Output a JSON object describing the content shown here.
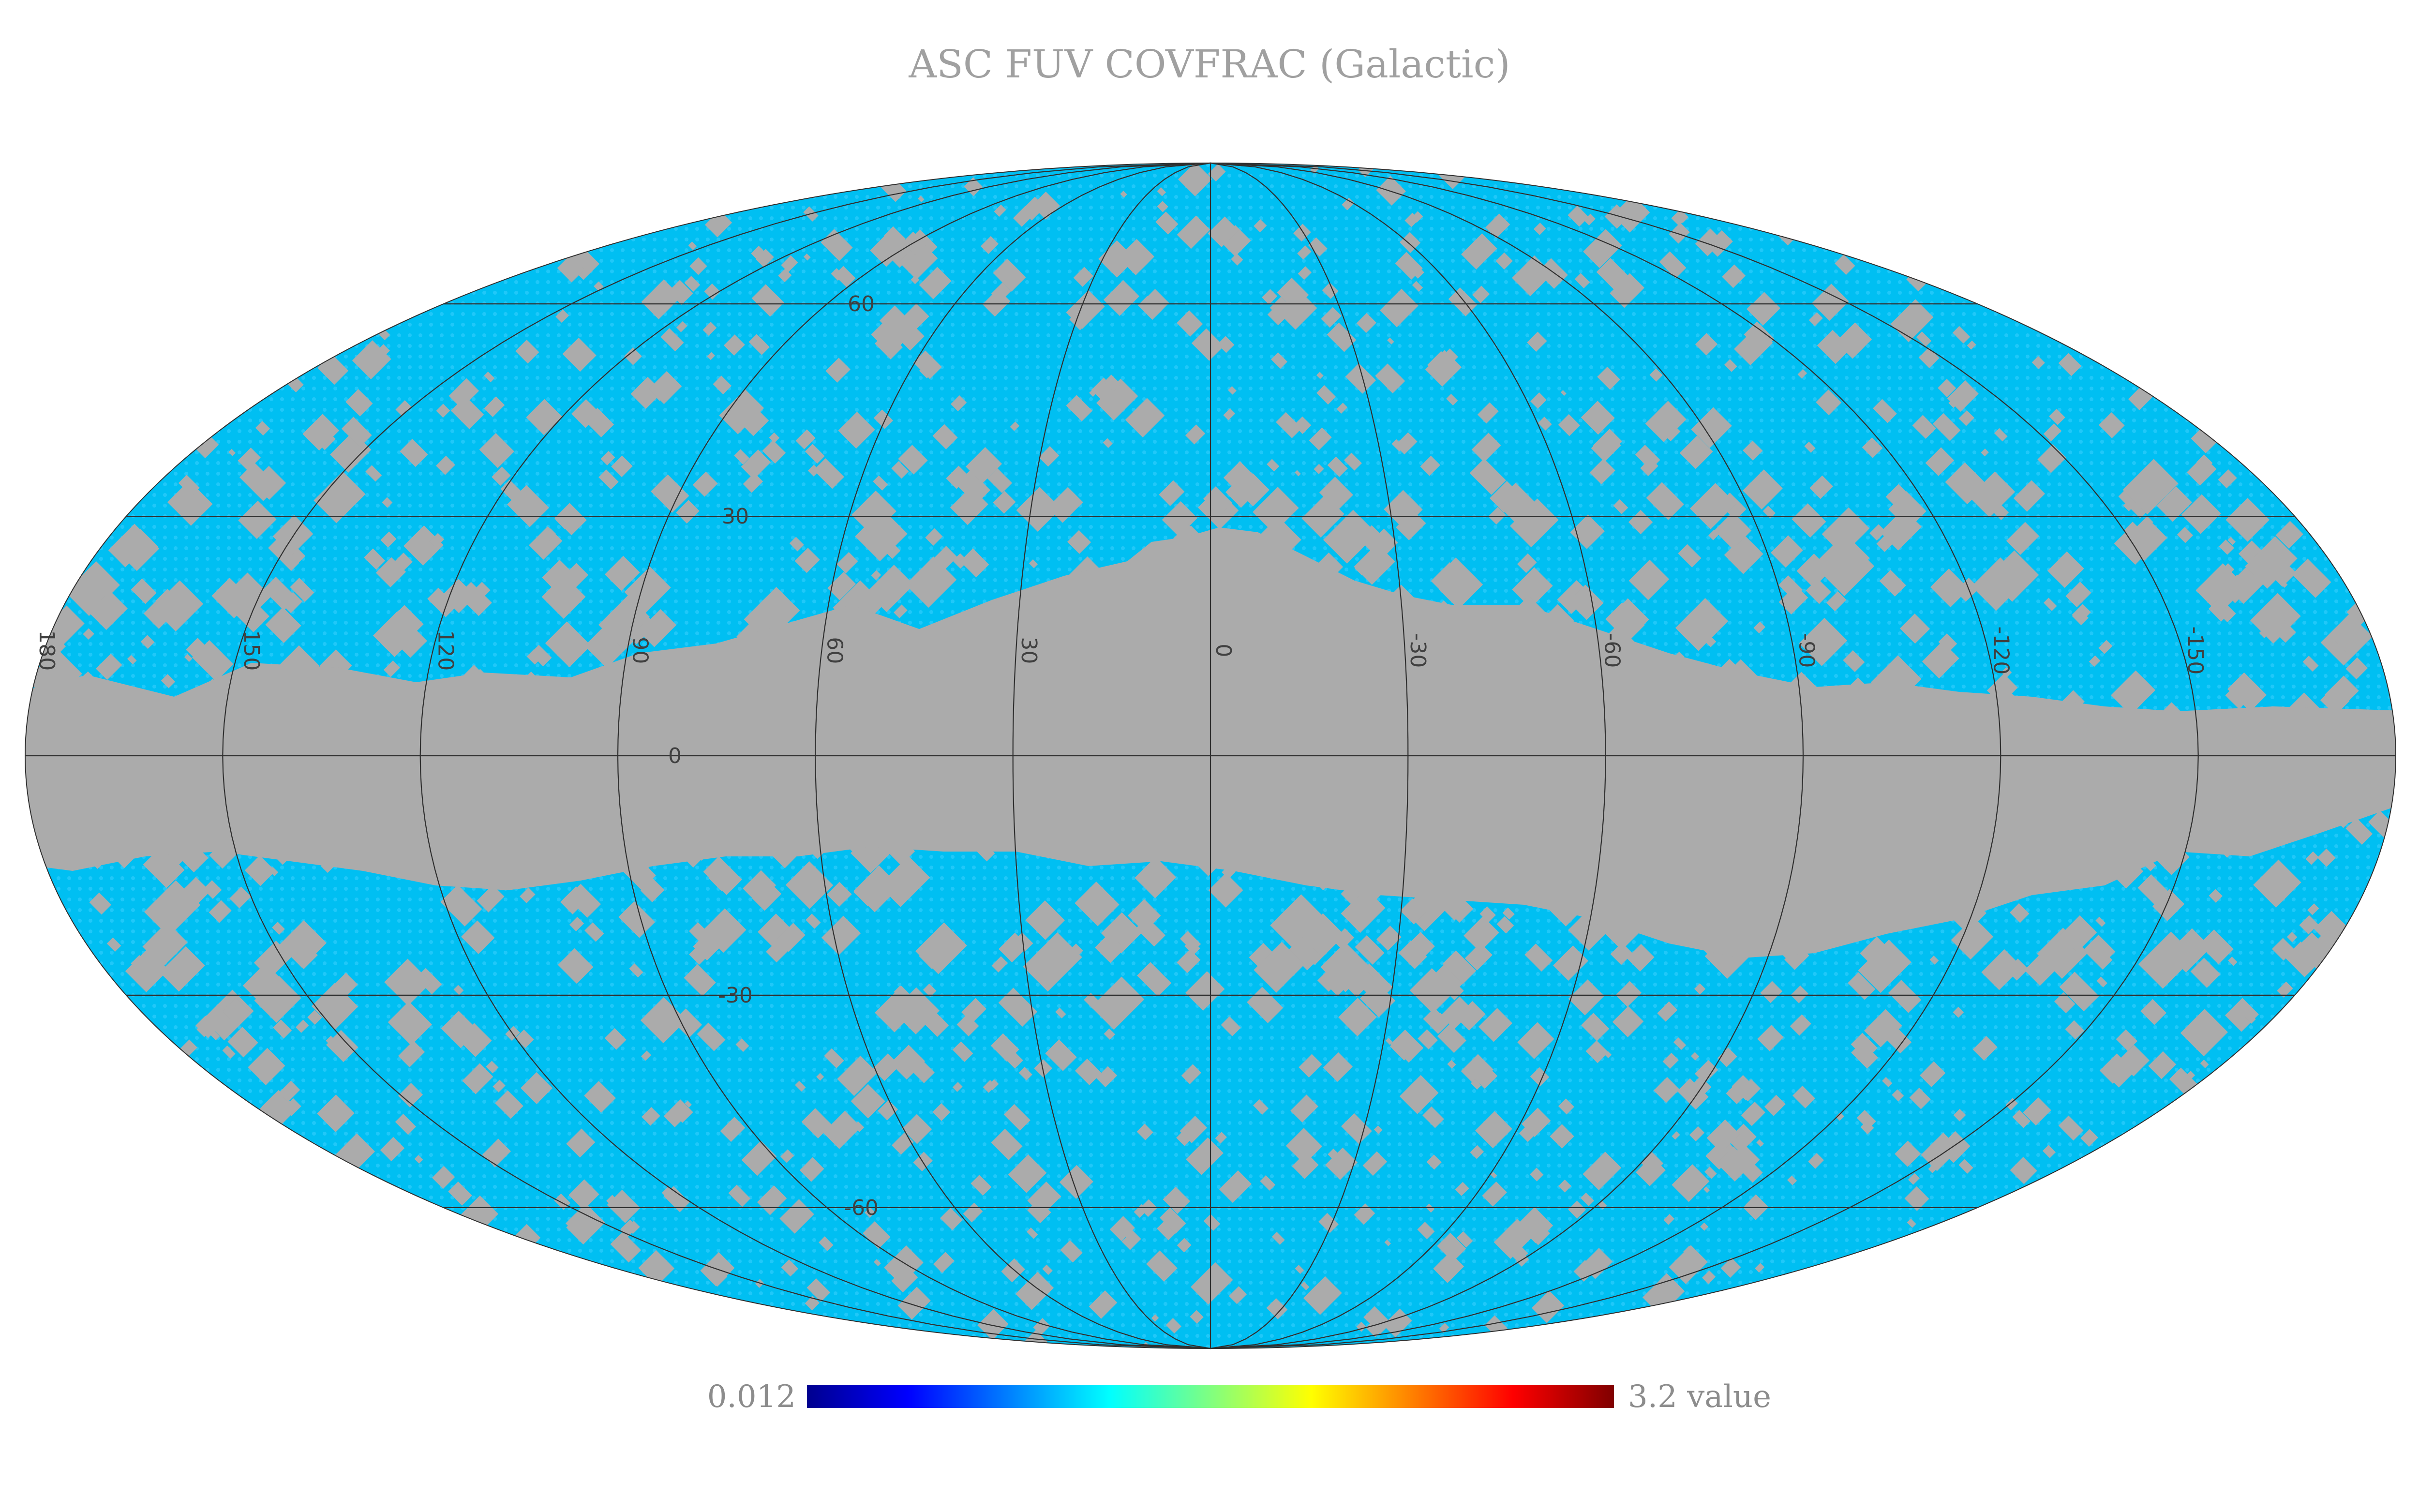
{
  "title": "ASC FUV COVFRAC (Galactic)",
  "projection": "mollweide",
  "coordinate_frame": "galactic",
  "colors": {
    "coverage": "#00bff2",
    "coverage_dots": "#40d0ff",
    "no_data": "#ababab",
    "graticule": "#303030",
    "title_text": "#a0a0a0",
    "colorbar_text": "#8c8c8c",
    "background": "#ffffff"
  },
  "graticule": {
    "longitude_labels": [
      "180",
      "150",
      "120",
      "90",
      "60",
      "30",
      "0",
      "-30",
      "-60",
      "-90",
      "-120",
      "-150"
    ],
    "latitude_labels": [
      "60",
      "30",
      "0",
      "-30",
      "-60"
    ]
  },
  "colorbar": {
    "min_label": "0.012",
    "max_label": "3.2 value",
    "colormap": "jet",
    "stops": [
      "#00008f",
      "#0000ff",
      "#0080ff",
      "#00ffff",
      "#80ff80",
      "#ffff00",
      "#ff8000",
      "#ff0000",
      "#800000"
    ]
  },
  "coverage_summary": {
    "displayed_value": "uniform coverage fraction (single colour in jet scale)",
    "masked_region": "galactic plane band, roughly |b| < 20, widest toward the galactic center"
  }
}
